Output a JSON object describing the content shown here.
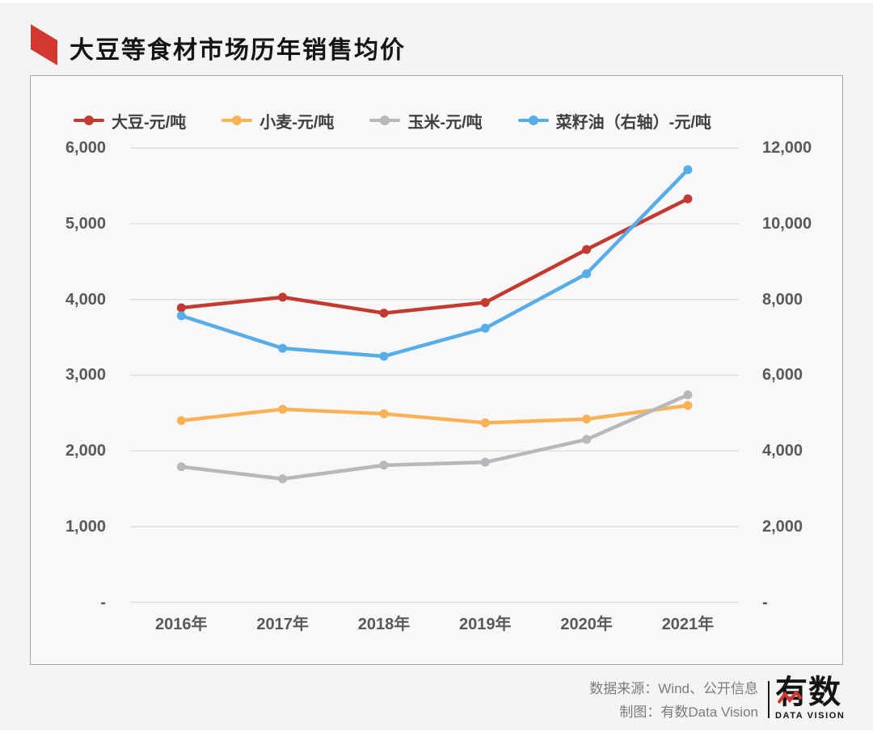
{
  "title": "大豆等食材市场历年销售均价",
  "accent_color": "#d1392e",
  "chart_data": {
    "type": "line",
    "categories": [
      "2016年",
      "2017年",
      "2018年",
      "2019年",
      "2020年",
      "2021年"
    ],
    "series": [
      {
        "name": "大豆-元/吨",
        "axis": "left",
        "color": "#c23a30",
        "values": [
          3890,
          4030,
          3820,
          3960,
          4660,
          5330
        ]
      },
      {
        "name": "小麦-元/吨",
        "axis": "left",
        "color": "#fbb156",
        "values": [
          2400,
          2550,
          2490,
          2370,
          2420,
          2600
        ]
      },
      {
        "name": "玉米-元/吨",
        "axis": "left",
        "color": "#b7b8bc",
        "values": [
          1790,
          1630,
          1810,
          1850,
          2150,
          2740
        ]
      },
      {
        "name": "菜籽油（右轴）-元/吨",
        "axis": "right",
        "color": "#57ade8",
        "values": [
          7570,
          6710,
          6500,
          7240,
          8680,
          11430
        ]
      }
    ],
    "left_axis": {
      "min": 0,
      "max": 6000,
      "step": 1000,
      "ticks": [
        "-",
        "1,000",
        "2,000",
        "3,000",
        "4,000",
        "5,000",
        "6,000"
      ]
    },
    "right_axis": {
      "min": 0,
      "max": 12000,
      "step": 2000,
      "ticks": [
        "-",
        "2,000",
        "4,000",
        "6,000",
        "8,000",
        "10,000",
        "12,000"
      ]
    },
    "legend_position": "top",
    "grid": true,
    "gridline_color": "#dbdbdb"
  },
  "footer": {
    "source_line": "数据来源：Wind、公开信息",
    "credit_line": "制图：有数Data Vision",
    "logo_text": "有数",
    "logo_subtext": "DATA VISION"
  }
}
